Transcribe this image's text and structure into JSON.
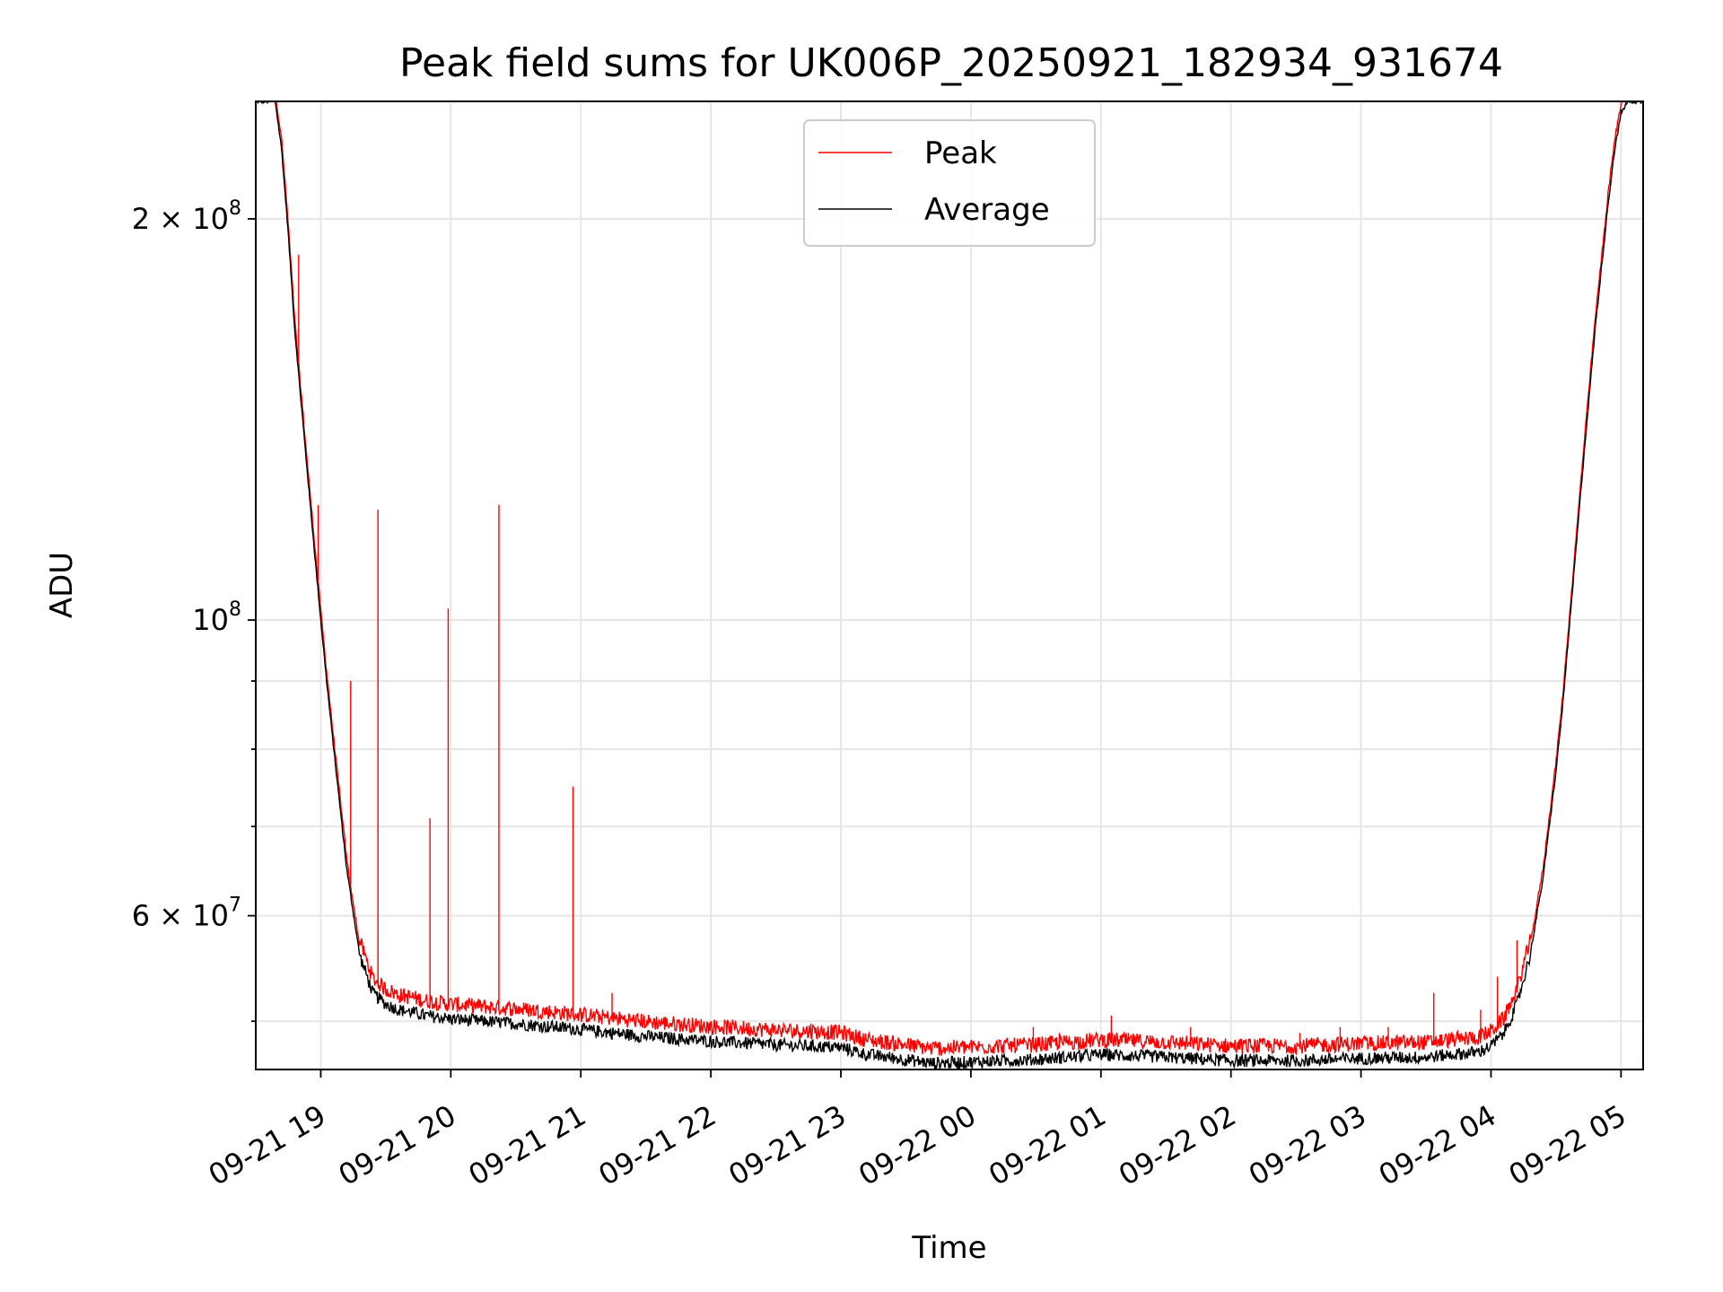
{
  "chart_data": {
    "type": "line",
    "title": "Peak field sums for UK006P_20250921_182934_931674",
    "xlabel": "Time",
    "ylabel": "ADU",
    "yscale": "log",
    "xlim_hours": [
      -0.5,
      10.17
    ],
    "ylim": [
      46000000,
      245000000
    ],
    "grid": true,
    "legend_position": "top-center",
    "x_ticks": [
      {
        "hour": 0,
        "label": "09-21 19"
      },
      {
        "hour": 1,
        "label": "09-21 20"
      },
      {
        "hour": 2,
        "label": "09-21 21"
      },
      {
        "hour": 3,
        "label": "09-21 22"
      },
      {
        "hour": 4,
        "label": "09-21 23"
      },
      {
        "hour": 5,
        "label": "09-22 00"
      },
      {
        "hour": 6,
        "label": "09-22 01"
      },
      {
        "hour": 7,
        "label": "09-22 02"
      },
      {
        "hour": 8,
        "label": "09-22 03"
      },
      {
        "hour": 9,
        "label": "09-22 04"
      },
      {
        "hour": 10,
        "label": "09-22 05"
      }
    ],
    "y_major_ticks": [
      {
        "value": 100000000,
        "base": "10",
        "exp": "8"
      },
      {
        "value": 60000000,
        "base": "6 × 10",
        "exp": "7"
      },
      {
        "value": 200000000,
        "base": "2 × 10",
        "exp": "8"
      }
    ],
    "y_minor_ticks": [
      50000000,
      70000000,
      80000000,
      90000000
    ],
    "series": [
      {
        "name": "Peak",
        "color": "#ff0000"
      },
      {
        "name": "Average",
        "color": "#000000"
      }
    ],
    "average_curve": {
      "hours": [
        -0.5,
        -0.35,
        -0.3,
        -0.25,
        -0.2,
        -0.1,
        -0.05,
        0.0,
        0.05,
        0.1,
        0.2,
        0.3,
        0.4,
        0.5,
        0.6,
        0.7,
        0.8,
        1.0,
        1.5,
        2.0,
        2.5,
        3.0,
        3.5,
        4.0,
        4.2,
        4.5,
        4.7,
        5.0,
        5.5,
        6.0,
        6.5,
        7.0,
        7.5,
        8.0,
        8.5,
        8.9,
        9.0,
        9.1,
        9.2,
        9.3,
        9.4,
        9.5,
        9.55,
        9.6,
        9.7,
        9.8,
        9.9,
        9.95,
        10.0,
        10.05,
        10.17
      ],
      "values": [
        245000000,
        245000000,
        225000000,
        195000000,
        165000000,
        128000000,
        113000000,
        100000000,
        89000000,
        80000000,
        65000000,
        56000000,
        52500000,
        51500000,
        51000000,
        50800000,
        50500000,
        50200000,
        49800000,
        49300000,
        48700000,
        48300000,
        48000000,
        47800000,
        47200000,
        46800000,
        46500000,
        46600000,
        46800000,
        47200000,
        47000000,
        46700000,
        46700000,
        46900000,
        47000000,
        47400000,
        47900000,
        49000000,
        51500000,
        56000000,
        64000000,
        77000000,
        86000000,
        98000000,
        128000000,
        165000000,
        205000000,
        225000000,
        240000000,
        245000000,
        245000000
      ]
    },
    "peak_spikes": [
      {
        "hour": -0.17,
        "value": 188000000
      },
      {
        "hour": -0.02,
        "value": 122000000
      },
      {
        "hour": 0.23,
        "value": 90000000
      },
      {
        "hour": 0.44,
        "value": 121000000
      },
      {
        "hour": 0.84,
        "value": 71000000
      },
      {
        "hour": 0.98,
        "value": 102000000
      },
      {
        "hour": 1.37,
        "value": 122000000
      },
      {
        "hour": 1.94,
        "value": 75000000
      },
      {
        "hour": 2.24,
        "value": 52500000
      },
      {
        "hour": 3.77,
        "value": 49800000
      },
      {
        "hour": 4.54,
        "value": 48500000
      },
      {
        "hour": 5.48,
        "value": 49500000
      },
      {
        "hour": 5.68,
        "value": 49000000
      },
      {
        "hour": 6.08,
        "value": 50500000
      },
      {
        "hour": 6.69,
        "value": 49500000
      },
      {
        "hour": 7.53,
        "value": 49000000
      },
      {
        "hour": 7.84,
        "value": 49500000
      },
      {
        "hour": 8.21,
        "value": 49500000
      },
      {
        "hour": 8.56,
        "value": 52500000
      },
      {
        "hour": 8.92,
        "value": 51000000
      },
      {
        "hour": 9.05,
        "value": 54000000
      },
      {
        "hour": 9.2,
        "value": 57500000
      }
    ]
  }
}
